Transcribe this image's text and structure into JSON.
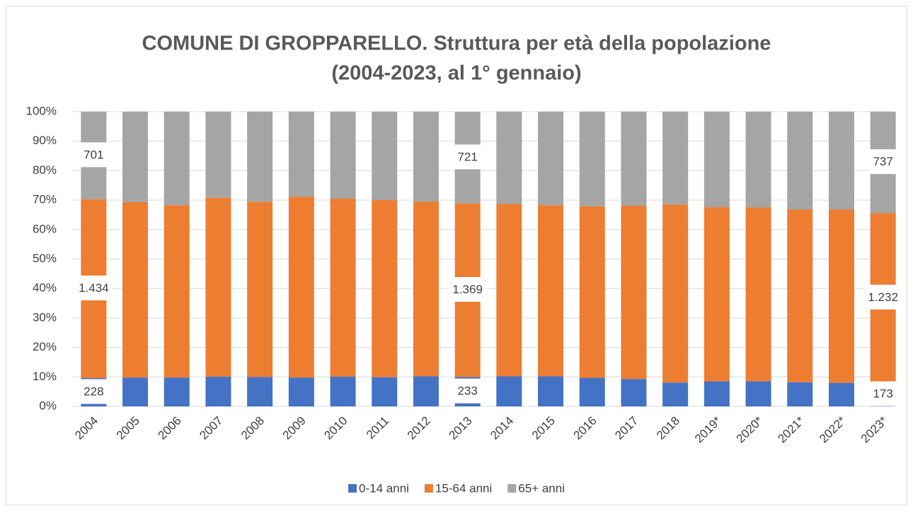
{
  "chart_data": {
    "type": "stacked_bar",
    "title": [
      "COMUNE DI GROPPARELLO. Struttura per età della popolazione",
      "(2004-2023, al 1° gennaio)"
    ],
    "categories": [
      "2004",
      "2005",
      "2006",
      "2007",
      "2008",
      "2009",
      "2010",
      "2011",
      "2012",
      "2013",
      "2014",
      "2015",
      "2016",
      "2017",
      "2018",
      "2019*",
      "2020*",
      "2021*",
      "2022*",
      "2023*"
    ],
    "series": [
      {
        "name": "0-14 anni",
        "color": "#4472c4",
        "values": [
          9.6,
          9.8,
          9.8,
          10.1,
          10.0,
          9.8,
          10.1,
          9.9,
          10.2,
          10.0,
          10.2,
          10.2,
          9.7,
          9.3,
          8.1,
          8.5,
          8.5,
          8.2,
          8.0,
          8.1
        ]
      },
      {
        "name": "15-64 anni",
        "color": "#ed7d31",
        "values": [
          60.7,
          59.5,
          58.5,
          60.7,
          59.4,
          61.3,
          60.4,
          60.1,
          59.3,
          58.9,
          58.5,
          58.1,
          58.2,
          58.8,
          60.4,
          59.1,
          59.0,
          58.6,
          58.8,
          57.5
        ]
      },
      {
        "name": "65+ anni",
        "color": "#a5a5a5",
        "values": [
          29.7,
          30.7,
          31.7,
          29.2,
          30.6,
          28.9,
          29.5,
          30.0,
          30.5,
          31.0,
          31.3,
          31.7,
          32.1,
          31.9,
          31.5,
          32.4,
          32.5,
          33.2,
          33.2,
          34.4
        ]
      }
    ],
    "annotations": [
      {
        "category": "2004",
        "series": "0-14 anni",
        "text": "228"
      },
      {
        "category": "2004",
        "series": "15-64 anni",
        "text": "1.434"
      },
      {
        "category": "2004",
        "series": "65+ anni",
        "text": "701"
      },
      {
        "category": "2013",
        "series": "0-14 anni",
        "text": "233"
      },
      {
        "category": "2013",
        "series": "15-64 anni",
        "text": "1.369"
      },
      {
        "category": "2013",
        "series": "65+ anni",
        "text": "721"
      },
      {
        "category": "2023*",
        "series": "0-14 anni",
        "text": "173"
      },
      {
        "category": "2023*",
        "series": "15-64 anni",
        "text": "1.232"
      },
      {
        "category": "2023*",
        "series": "65+ anni",
        "text": "737"
      }
    ],
    "ylim": [
      0,
      100
    ],
    "yticks": [
      {
        "value": 0,
        "label": "0%"
      },
      {
        "value": 10,
        "label": "10%"
      },
      {
        "value": 20,
        "label": "20%"
      },
      {
        "value": 30,
        "label": "30%"
      },
      {
        "value": 40,
        "label": "40%"
      },
      {
        "value": 50,
        "label": "50%"
      },
      {
        "value": 60,
        "label": "60%"
      },
      {
        "value": 70,
        "label": "70%"
      },
      {
        "value": 80,
        "label": "80%"
      },
      {
        "value": 90,
        "label": "90%"
      },
      {
        "value": 100,
        "label": "100%"
      }
    ],
    "grid": true,
    "legend": "bottom"
  }
}
